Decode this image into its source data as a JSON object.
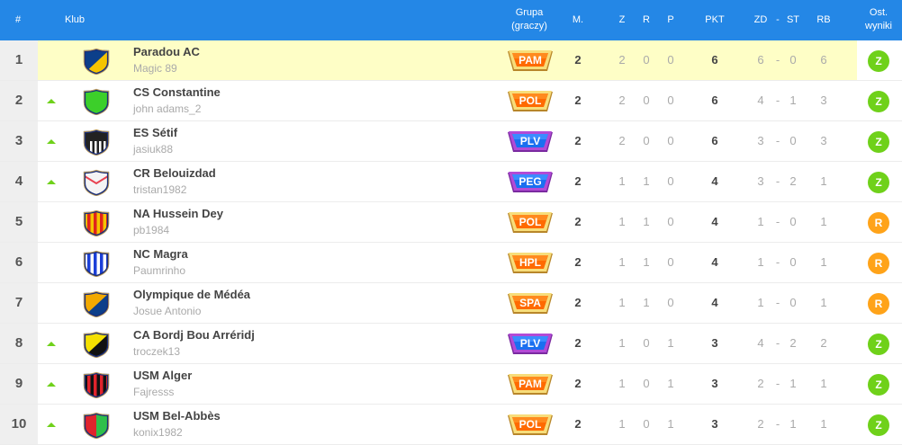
{
  "header": {
    "rank": "#",
    "club": "Klub",
    "group_line1": "Grupa",
    "group_line2": "(graczy)",
    "matches": "M.",
    "wins": "Z",
    "draws": "R",
    "losses": "P",
    "points": "PKT",
    "goals_for": "ZD",
    "dash": "-",
    "goals_against": "ST",
    "goal_diff": "RB",
    "last_line1": "Ost.",
    "last_line2": "wyniki"
  },
  "colors": {
    "header": "#2487e6",
    "highlight": "#fefec6",
    "up_arrow": "#6fd11a",
    "result_win": "#6fd11a",
    "result_draw": "#ffa319",
    "badge_orange": "#ff6a00",
    "badge_blue": "#1a6ff0"
  },
  "rows": [
    {
      "rank": "1",
      "trend": "none",
      "club": "Paradou AC",
      "user": "Magic 89",
      "crest": {
        "style": "diagonal",
        "c1": "#0c3f8a",
        "c2": "#f5c400"
      },
      "group": "PAM",
      "group_style": "orange",
      "m": "2",
      "z": "2",
      "r": "0",
      "p": "0",
      "pkt": "6",
      "zd": "6",
      "st": "0",
      "rb": "6",
      "result": "Z",
      "highlight": true
    },
    {
      "rank": "2",
      "trend": "up",
      "club": "CS Constantine",
      "user": "john adams_2",
      "crest": {
        "style": "solid",
        "c1": "#3ccf2a",
        "c2": "#3ccf2a"
      },
      "group": "POL",
      "group_style": "orange",
      "m": "2",
      "z": "2",
      "r": "0",
      "p": "0",
      "pkt": "6",
      "zd": "4",
      "st": "1",
      "rb": "3",
      "result": "Z"
    },
    {
      "rank": "3",
      "trend": "up",
      "club": "ES Sétif",
      "user": "jasiuk88",
      "crest": {
        "style": "stripes-bottom",
        "c1": "#222222",
        "c2": "#ffffff"
      },
      "group": "PLV",
      "group_style": "blue",
      "m": "2",
      "z": "2",
      "r": "0",
      "p": "0",
      "pkt": "6",
      "zd": "3",
      "st": "0",
      "rb": "3",
      "result": "Z"
    },
    {
      "rank": "4",
      "trend": "up",
      "club": "CR Belouizdad",
      "user": "tristan1982",
      "crest": {
        "style": "chevron",
        "c1": "#f4f4f4",
        "c2": "#e8414f"
      },
      "group": "PEG",
      "group_style": "blue",
      "m": "2",
      "z": "1",
      "r": "1",
      "p": "0",
      "pkt": "4",
      "zd": "3",
      "st": "2",
      "rb": "1",
      "result": "Z"
    },
    {
      "rank": "5",
      "trend": "none",
      "club": "NA Hussein Dey",
      "user": "pb1984",
      "crest": {
        "style": "stripes",
        "c1": "#f5c400",
        "c2": "#e0241c"
      },
      "group": "POL",
      "group_style": "orange",
      "m": "2",
      "z": "1",
      "r": "1",
      "p": "0",
      "pkt": "4",
      "zd": "1",
      "st": "0",
      "rb": "1",
      "result": "R"
    },
    {
      "rank": "6",
      "trend": "none",
      "club": "NC Magra",
      "user": "Paumrinho",
      "crest": {
        "style": "stripes",
        "c1": "#ffffff",
        "c2": "#1b3fd8"
      },
      "group": "HPL",
      "group_style": "orange",
      "m": "2",
      "z": "1",
      "r": "1",
      "p": "0",
      "pkt": "4",
      "zd": "1",
      "st": "0",
      "rb": "1",
      "result": "R"
    },
    {
      "rank": "7",
      "trend": "none",
      "club": "Olympique de Médéa",
      "user": "Josue Antonio",
      "crest": {
        "style": "diagonal",
        "c1": "#f2a900",
        "c2": "#0c3f8a"
      },
      "group": "SPA",
      "group_style": "orange",
      "m": "2",
      "z": "1",
      "r": "1",
      "p": "0",
      "pkt": "4",
      "zd": "1",
      "st": "0",
      "rb": "1",
      "result": "R"
    },
    {
      "rank": "8",
      "trend": "up",
      "club": "CA Bordj Bou Arréridj",
      "user": "troczek13",
      "crest": {
        "style": "diagonal",
        "c1": "#f5e000",
        "c2": "#111111"
      },
      "group": "PLV",
      "group_style": "blue",
      "m": "2",
      "z": "1",
      "r": "0",
      "p": "1",
      "pkt": "3",
      "zd": "4",
      "st": "2",
      "rb": "2",
      "result": "Z"
    },
    {
      "rank": "9",
      "trend": "up",
      "club": "USM Alger",
      "user": "Fajresss",
      "crest": {
        "style": "stripes",
        "c1": "#111111",
        "c2": "#e0242c"
      },
      "group": "PAM",
      "group_style": "orange",
      "m": "2",
      "z": "1",
      "r": "0",
      "p": "1",
      "pkt": "3",
      "zd": "2",
      "st": "1",
      "rb": "1",
      "result": "Z"
    },
    {
      "rank": "10",
      "trend": "up",
      "club": "USM Bel-Abbès",
      "user": "konix1982",
      "crest": {
        "style": "halves",
        "c1": "#e0242c",
        "c2": "#2fbf4a"
      },
      "group": "POL",
      "group_style": "orange",
      "m": "2",
      "z": "1",
      "r": "0",
      "p": "1",
      "pkt": "3",
      "zd": "2",
      "st": "1",
      "rb": "1",
      "result": "Z"
    }
  ]
}
